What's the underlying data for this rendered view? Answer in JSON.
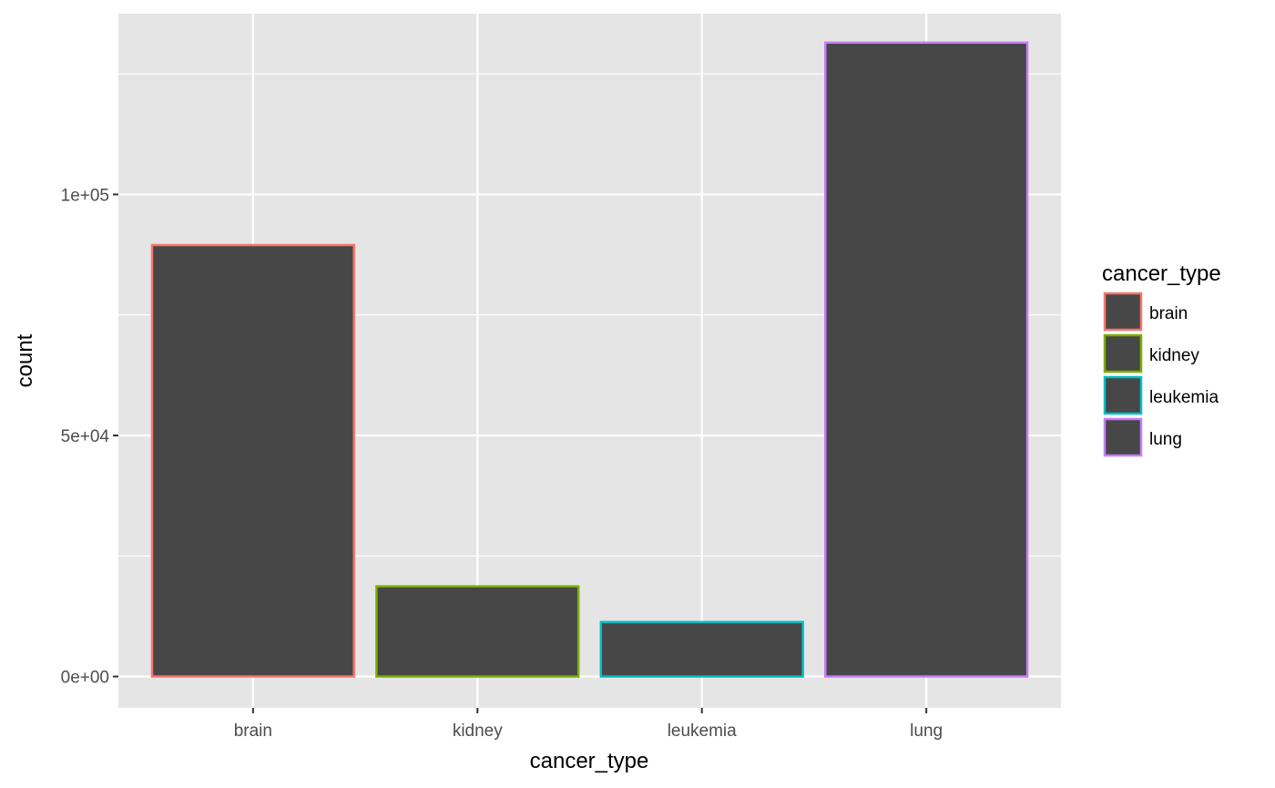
{
  "chart_data": {
    "type": "bar",
    "categories": [
      "brain",
      "kidney",
      "leukemia",
      "lung"
    ],
    "values": [
      89500,
      18700,
      11300,
      131500
    ],
    "xlabel": "cancer_type",
    "ylabel": "count",
    "ylim": [
      -6500,
      137500
    ],
    "y_ticks": [
      0,
      50000,
      100000
    ],
    "y_tick_labels": [
      "0e+00",
      "5e+04",
      "1e+05"
    ],
    "y_minor_ticks": [
      25000,
      75000,
      125000
    ],
    "grid": true,
    "bar_fill": "#474747",
    "bar_outline_colors": [
      "#F8766D",
      "#7CAE00",
      "#00BFC4",
      "#C77CFF"
    ],
    "panel_background": "#E5E5E5",
    "gridline_color": "#FFFFFF",
    "legend": {
      "title": "cancer_type",
      "position": "right",
      "entries": [
        "brain",
        "kidney",
        "leukemia",
        "lung"
      ]
    }
  }
}
